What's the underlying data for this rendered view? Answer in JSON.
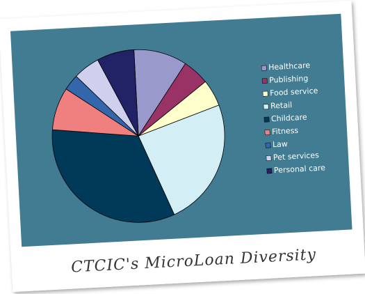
{
  "chart_data": {
    "type": "pie",
    "title": "CTCIC's MicroLoan Diversity",
    "categories": [
      "Healthcare",
      "Publishing",
      "Food service",
      "Retail",
      "Childcare",
      "Fitness",
      "Law",
      "Pet services",
      "Personal care"
    ],
    "values": [
      10,
      5,
      5,
      24,
      33,
      8,
      3,
      5,
      7
    ],
    "colors": [
      "#9999cc",
      "#993366",
      "#ffffcc",
      "#d4eef5",
      "#003a58",
      "#f08080",
      "#3366aa",
      "#cfcfee",
      "#222266"
    ],
    "legend": "right"
  }
}
